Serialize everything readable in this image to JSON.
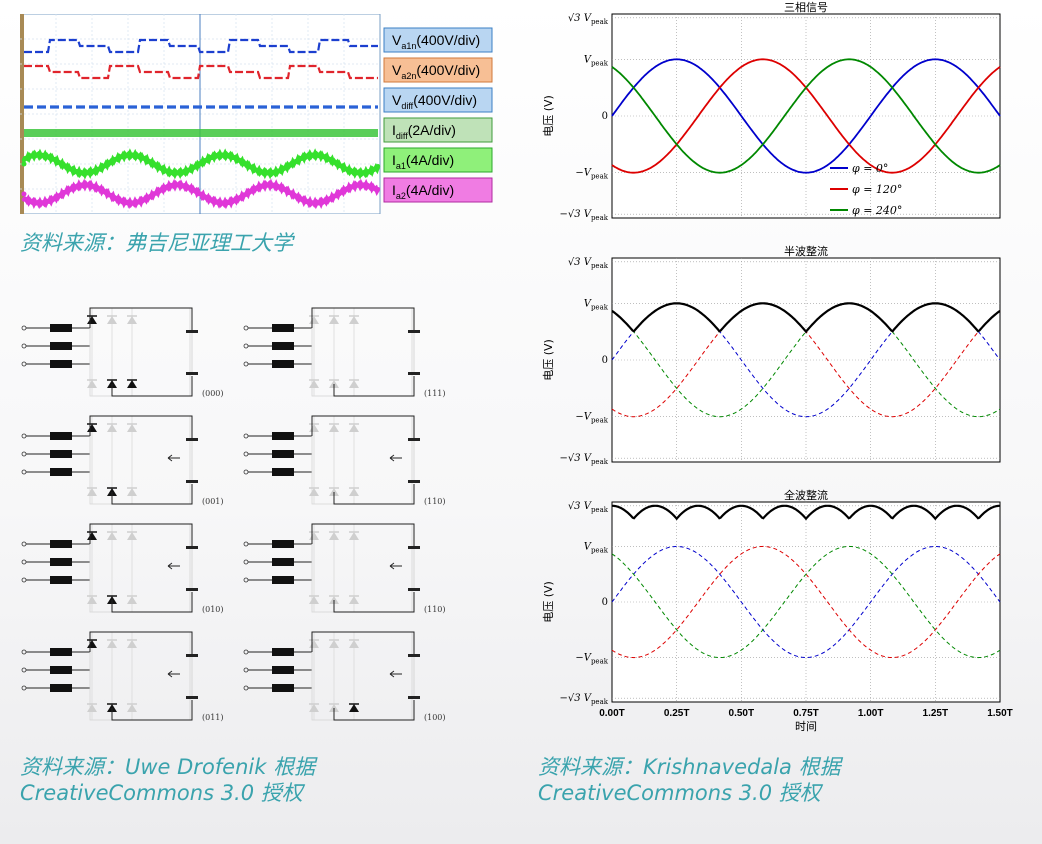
{
  "captions": {
    "scope_source": "资料来源：弗吉尼亚理工大学",
    "circuit_source_line1": "资料来源：Uwe Drofenik 根据",
    "circuit_source_line2": "CreativeCommons 3.0 授权",
    "chart_source_line1": "资料来源：Krishnavedala 根据",
    "chart_source_line2": "CreativeCommons 3.0 授权"
  },
  "scope": {
    "legend": [
      {
        "main": "V",
        "sub": "a1n",
        "unit": "(400V/div)",
        "bg": "#b9d6f2",
        "border": "#3a7fc4"
      },
      {
        "main": "V",
        "sub": "a2n",
        "unit": "(400V/div)",
        "bg": "#f7bf95",
        "border": "#d0783a"
      },
      {
        "main": "V",
        "sub": "diff",
        "unit": "(400V/div)",
        "bg": "#b9d6f2",
        "border": "#3a7fc4"
      },
      {
        "main": "I",
        "sub": "diff",
        "unit": "(2A/div)",
        "bg": "#bfe2b8",
        "border": "#3f9c3a"
      },
      {
        "main": "I",
        "sub": "a1",
        "unit": "(4A/div)",
        "bg": "#8ff07a",
        "border": "#2aa82a"
      },
      {
        "main": "I",
        "sub": "a2",
        "unit": "(4A/div)",
        "bg": "#f07ce3",
        "border": "#b02aa0"
      }
    ]
  },
  "circuits": {
    "states": [
      "(000)",
      "(111)",
      "(001)",
      "(110)",
      "(010)",
      "(110)",
      "(011)",
      "(100)"
    ]
  },
  "chart_data": [
    {
      "type": "line",
      "title": "三相信号",
      "ylabel": "电压 (V)",
      "yticks": [
        "√3 V_peak",
        "V_peak",
        "0",
        "−V_peak",
        "−√3 V_peak"
      ],
      "ylim": [
        -1.8,
        1.8
      ],
      "xlim": [
        0,
        1.5
      ],
      "grid": true,
      "legend_position": "lower-right",
      "series": [
        {
          "name": "φ = 0°",
          "phase_deg": 0,
          "amplitude": 1,
          "color": "#0000cc",
          "style": "solid"
        },
        {
          "name": "φ = 120°",
          "phase_deg": 120,
          "amplitude": 1,
          "color": "#dd0000",
          "style": "solid"
        },
        {
          "name": "φ = 240°",
          "phase_deg": 240,
          "amplitude": 1,
          "color": "#008800",
          "style": "solid"
        }
      ]
    },
    {
      "type": "line",
      "title": "半波整流",
      "ylabel": "电压 (V)",
      "yticks": [
        "√3 V_peak",
        "V_peak",
        "0",
        "−V_peak",
        "−√3 V_peak"
      ],
      "ylim": [
        -1.8,
        1.8
      ],
      "xlim": [
        0,
        1.5
      ],
      "grid": true,
      "series": [
        {
          "phase_deg": 0,
          "amplitude": 1,
          "color": "#0000cc",
          "style": "dashed"
        },
        {
          "phase_deg": 120,
          "amplitude": 1,
          "color": "#dd0000",
          "style": "dashed"
        },
        {
          "phase_deg": 240,
          "amplitude": 1,
          "color": "#008800",
          "style": "dashed"
        },
        {
          "function": "max(phases)",
          "color": "#000000",
          "style": "solid"
        }
      ]
    },
    {
      "type": "line",
      "title": "全波整流",
      "ylabel": "电压 (V)",
      "xlabel": "时间",
      "xticks": [
        "0.00T",
        "0.25T",
        "0.50T",
        "0.75T",
        "1.00T",
        "1.25T",
        "1.50T"
      ],
      "yticks": [
        "√3 V_peak",
        "V_peak",
        "0",
        "−V_peak",
        "−√3 V_peak"
      ],
      "ylim": [
        -1.8,
        1.8
      ],
      "xlim": [
        0,
        1.5
      ],
      "grid": true,
      "series": [
        {
          "phase_deg": 0,
          "amplitude": 1,
          "color": "#0000cc",
          "style": "dashed"
        },
        {
          "phase_deg": 120,
          "amplitude": 1,
          "color": "#dd0000",
          "style": "dashed"
        },
        {
          "phase_deg": 240,
          "amplitude": 1,
          "color": "#008800",
          "style": "dashed"
        },
        {
          "function": "max(phases) - min(phases)",
          "color": "#000000",
          "style": "solid"
        }
      ]
    }
  ]
}
